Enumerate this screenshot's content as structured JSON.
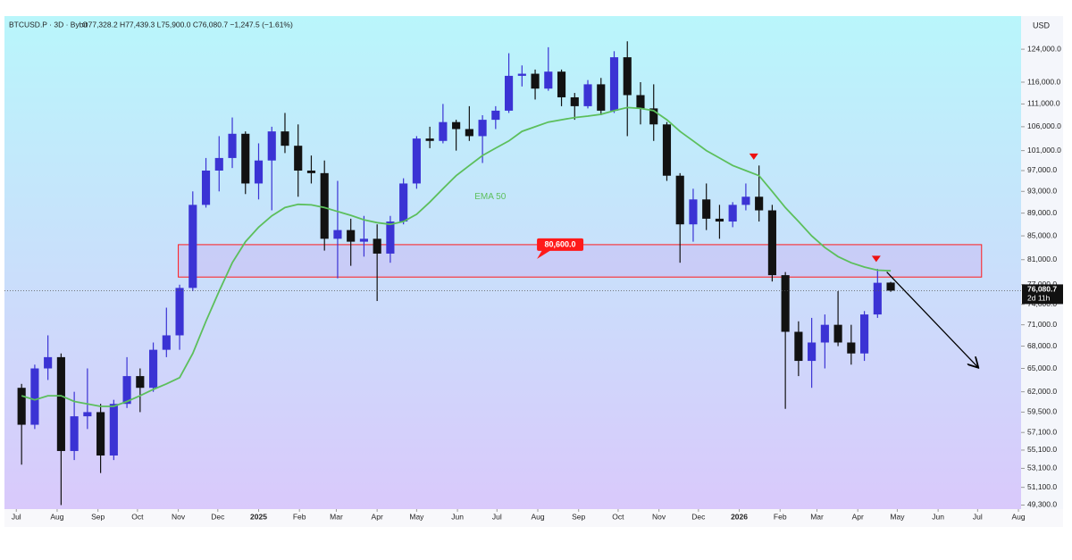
{
  "chart_data": {
    "type": "candlestick",
    "title": "BTCUSD.P · 3D · Bybit",
    "ohlc_label": "O77,328.2 H77,439.3 L75,900.0 C76,080.7 −1,247.5 (−1.61%)",
    "currency": "USD",
    "log_scale": true,
    "up_color": "#3b33d4",
    "down_color": "#121212",
    "x": [
      4,
      14,
      24,
      34,
      44,
      54,
      64,
      74,
      84,
      94,
      104,
      114,
      124,
      134,
      144,
      154,
      164,
      174,
      184,
      194,
      204,
      214,
      224,
      234,
      244,
      254,
      264,
      274,
      284,
      294,
      304,
      314,
      324,
      334,
      344,
      354,
      364,
      374,
      384,
      394,
      404,
      414,
      424,
      434,
      444,
      454,
      464,
      474,
      484,
      494,
      504,
      514,
      524,
      534,
      544,
      554,
      564,
      574,
      584,
      594,
      604,
      614,
      624,
      634,
      644,
      654,
      664
    ],
    "open": [
      62500,
      58000,
      65000,
      66500,
      55000,
      59000,
      59500,
      54500,
      60500,
      64000,
      62500,
      67500,
      69500,
      76500,
      90500,
      97000,
      99500,
      104500,
      94500,
      99000,
      105000,
      102000,
      97000,
      96500,
      84500,
      86000,
      84000,
      84500,
      82000,
      87500,
      94500,
      103500,
      103000,
      107000,
      105500,
      104000,
      107500,
      109500,
      117500,
      118000,
      114500,
      118500,
      112500,
      110500,
      115500,
      109500,
      122000,
      113000,
      110000,
      106500,
      96000,
      87000,
      91500,
      88000,
      87500,
      90500,
      92000,
      89500,
      78500,
      70000,
      66000,
      68500,
      71000,
      68500,
      67000,
      72500,
      77328.2
    ],
    "high": [
      63000,
      65500,
      69500,
      67000,
      62000,
      65000,
      60500,
      61000,
      66500,
      65000,
      68500,
      73500,
      77000,
      93000,
      99500,
      104000,
      108000,
      105000,
      102500,
      106000,
      109000,
      106500,
      100000,
      99000,
      95000,
      88000,
      88500,
      87000,
      88500,
      95500,
      104000,
      106000,
      111000,
      107500,
      110500,
      108500,
      110500,
      123000,
      120000,
      119000,
      124500,
      119000,
      113500,
      116500,
      117000,
      123500,
      126000,
      116000,
      115500,
      107000,
      96500,
      93500,
      94500,
      90500,
      91000,
      94500,
      98000,
      90500,
      79000,
      71500,
      72000,
      72500,
      76000,
      71000,
      73000,
      79500,
      77439.3
    ],
    "low": [
      53500,
      57500,
      63500,
      49300,
      54000,
      57500,
      52600,
      54000,
      60000,
      59500,
      62000,
      66500,
      67500,
      76000,
      90000,
      93000,
      97500,
      92500,
      91500,
      89500,
      100500,
      92000,
      94500,
      82500,
      78000,
      80000,
      81500,
      74500,
      80500,
      87000,
      93500,
      101500,
      102500,
      101000,
      103000,
      98500,
      105500,
      109000,
      115000,
      112000,
      114000,
      110500,
      107500,
      110000,
      108500,
      109000,
      104000,
      106500,
      103000,
      95000,
      80500,
      84000,
      86000,
      84500,
      86500,
      89500,
      87500,
      77500,
      59900,
      64000,
      62500,
      65000,
      68000,
      65500,
      66000,
      72000,
      75900
    ],
    "close": [
      58000,
      65000,
      66500,
      55000,
      59000,
      59500,
      54500,
      60500,
      64000,
      62500,
      67500,
      69500,
      76500,
      90500,
      97000,
      99500,
      104500,
      94500,
      99000,
      105000,
      102000,
      97000,
      96500,
      84500,
      86000,
      84000,
      84500,
      82000,
      87500,
      94500,
      103500,
      103000,
      107000,
      105500,
      104000,
      107500,
      109500,
      117500,
      118000,
      114500,
      118500,
      112500,
      110500,
      115500,
      109500,
      122000,
      113000,
      110000,
      106500,
      96000,
      87000,
      91500,
      88000,
      87500,
      90500,
      92000,
      89500,
      78500,
      70000,
      66000,
      68500,
      71000,
      68500,
      67000,
      72500,
      77300,
      76080.7
    ],
    "ema": {
      "name": "EMA 50",
      "color": "#5cbf5c",
      "values": [
        61500,
        61000,
        61500,
        61500,
        60800,
        60500,
        60200,
        60200,
        60800,
        61500,
        62300,
        63000,
        63800,
        67000,
        71500,
        76000,
        80500,
        84000,
        86500,
        88500,
        90000,
        90600,
        90500,
        90000,
        89300,
        88600,
        87800,
        87300,
        87000,
        87500,
        88800,
        91000,
        93500,
        96000,
        98000,
        100000,
        101500,
        103000,
        105000,
        106000,
        107000,
        107500,
        108000,
        108300,
        108700,
        109500,
        110200,
        110000,
        109500,
        107500,
        105000,
        103000,
        101000,
        99500,
        98000,
        97000,
        96000,
        93000,
        90000,
        87500,
        85000,
        83000,
        81500,
        80500,
        79800,
        79300,
        79200
      ]
    },
    "ema_label_at": [
      348,
      92000
    ],
    "zone": {
      "low": 78200,
      "high": 83500,
      "from": 123,
      "to": 733,
      "label": "80,600.0",
      "label_at": [
        413,
        83500
      ],
      "color": "#ff1a1a"
    },
    "signals": [
      {
        "x": 560,
        "y": 99500
      },
      {
        "x": 653,
        "y": 80900
      }
    ],
    "arrow": {
      "from": [
        661,
        79000
      ],
      "to": [
        730,
        65200
      ]
    },
    "last_price": {
      "value": 76080.7,
      "label": "76,080.7",
      "countdown": "2d 11h"
    },
    "xlim": [
      -9,
      763
    ],
    "ylim": [
      48900,
      132600
    ],
    "xticks": [
      {
        "value": 0,
        "label": "Jul"
      },
      {
        "value": 31,
        "label": "Aug"
      },
      {
        "value": 62,
        "label": "Sep"
      },
      {
        "value": 92,
        "label": "Oct"
      },
      {
        "value": 123,
        "label": "Nov"
      },
      {
        "value": 153,
        "label": "Dec"
      },
      {
        "value": 184,
        "label": "2025"
      },
      {
        "value": 215,
        "label": "Feb"
      },
      {
        "value": 243,
        "label": "Mar"
      },
      {
        "value": 274,
        "label": "Apr"
      },
      {
        "value": 304,
        "label": "May"
      },
      {
        "value": 335,
        "label": "Jun"
      },
      {
        "value": 365,
        "label": "Jul"
      },
      {
        "value": 396,
        "label": "Aug"
      },
      {
        "value": 427,
        "label": "Sep"
      },
      {
        "value": 457,
        "label": "Oct"
      },
      {
        "value": 488,
        "label": "Nov"
      },
      {
        "value": 518,
        "label": "Dec"
      },
      {
        "value": 549,
        "label": "2026"
      },
      {
        "value": 580,
        "label": "Feb"
      },
      {
        "value": 608,
        "label": "Mar"
      },
      {
        "value": 639,
        "label": "Apr"
      },
      {
        "value": 669,
        "label": "May"
      },
      {
        "value": 700,
        "label": "Jun"
      },
      {
        "value": 730,
        "label": "Jul"
      },
      {
        "value": 761,
        "label": "Aug"
      }
    ],
    "yticks": [
      {
        "value": 124000,
        "label": "124,000.0"
      },
      {
        "value": 116000,
        "label": "116,000.0"
      },
      {
        "value": 111000,
        "label": "111,000.0"
      },
      {
        "value": 106000,
        "label": "106,000.0"
      },
      {
        "value": 101000,
        "label": "101,000.0"
      },
      {
        "value": 97000,
        "label": "97,000.0"
      },
      {
        "value": 93000,
        "label": "93,000.0"
      },
      {
        "value": 89000,
        "label": "89,000.0"
      },
      {
        "value": 85000,
        "label": "85,000.0"
      },
      {
        "value": 81000,
        "label": "81,000.0"
      },
      {
        "value": 77000,
        "label": "77,000.0"
      },
      {
        "value": 74000,
        "label": "74,000.0"
      },
      {
        "value": 71000,
        "label": "71,000.0"
      },
      {
        "value": 68000,
        "label": "68,000.0"
      },
      {
        "value": 65000,
        "label": "65,000.0"
      },
      {
        "value": 62000,
        "label": "62,000.0"
      },
      {
        "value": 59500,
        "label": "59,500.0"
      },
      {
        "value": 57100,
        "label": "57,100.0"
      },
      {
        "value": 55100,
        "label": "55,100.0"
      },
      {
        "value": 53100,
        "label": "53,100.0"
      },
      {
        "value": 51100,
        "label": "51,100.0"
      },
      {
        "value": 49300,
        "label": "49,300.0"
      }
    ]
  }
}
